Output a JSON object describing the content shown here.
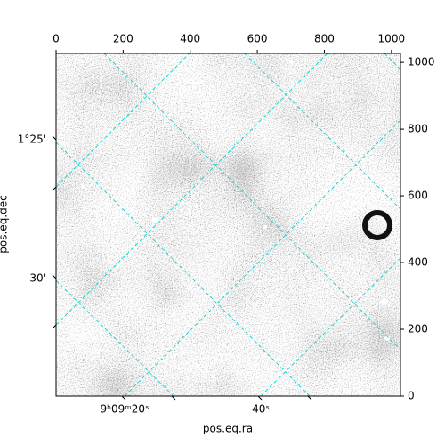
{
  "chart_data": {
    "type": "image",
    "xlabel": "pos.eq.ra",
    "ylabel": "pos.eq.dec",
    "xlim": [
      0,
      1027
    ],
    "xticks": [
      0,
      200,
      400,
      600,
      800,
      1000
    ],
    "ylim": [
      0,
      1027
    ],
    "yticks": [
      0,
      200,
      400,
      600,
      800,
      1000
    ],
    "ra_ticks": [
      "9ʰ09ᵐ20ˢ",
      "40ˢ"
    ],
    "dec_ticks": [
      "1°25'",
      "30'"
    ],
    "grid": true,
    "grid_color": "#22d3d3",
    "cmap": "gray"
  }
}
